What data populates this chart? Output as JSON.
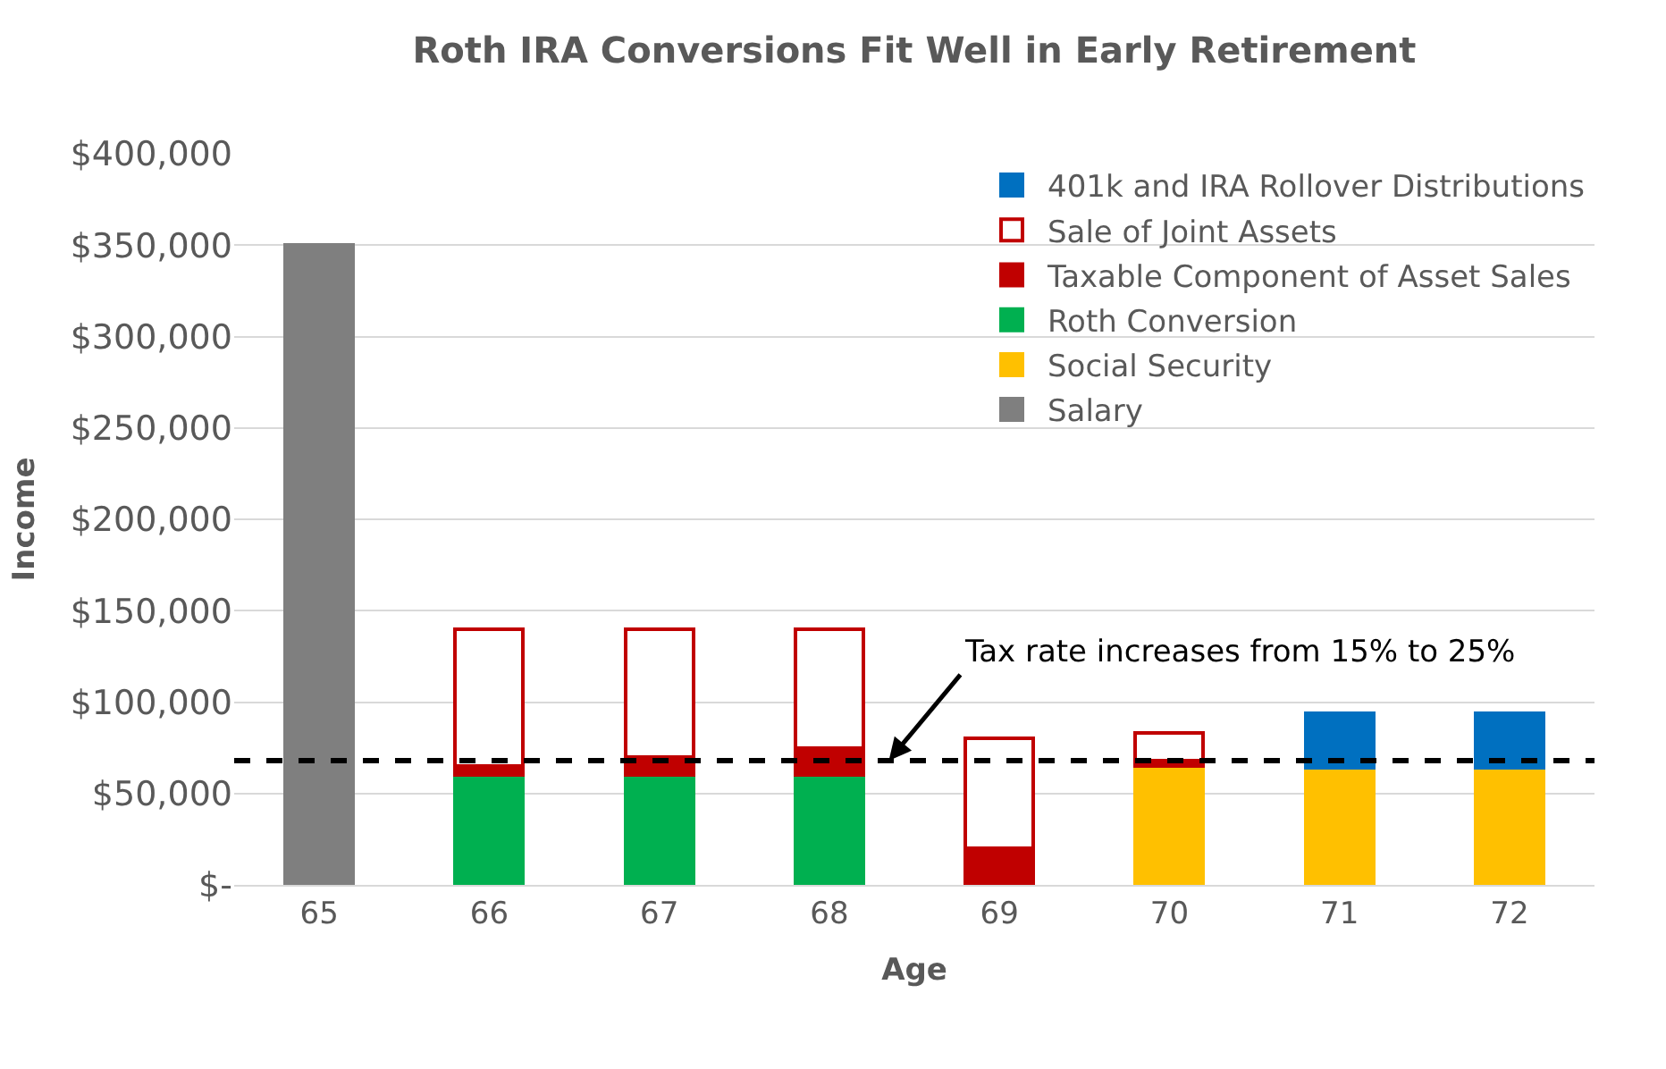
{
  "chart_data": {
    "type": "bar",
    "title": "Roth IRA Conversions Fit Well in Early Retirement",
    "xlabel": "Age",
    "ylabel": "Income",
    "categories": [
      "65",
      "66",
      "67",
      "68",
      "69",
      "70",
      "71",
      "72"
    ],
    "stacked": true,
    "series": [
      {
        "name": "Salary",
        "color": "#7f7f7f",
        "values": [
          350000,
          null,
          null,
          null,
          null,
          null,
          null,
          null
        ]
      },
      {
        "name": "Social Security",
        "color": "#ffc000",
        "values": [
          null,
          null,
          null,
          null,
          null,
          65000,
          64000,
          64000
        ]
      },
      {
        "name": "Roth Conversion",
        "color": "#00b050",
        "values": [
          null,
          60000,
          60000,
          60000,
          null,
          null,
          null,
          null
        ]
      },
      {
        "name": "Taxable Component of Asset Sales",
        "color": "#c00000",
        "values": [
          null,
          5000,
          10000,
          15000,
          20000,
          3000,
          null,
          null
        ]
      },
      {
        "name": "Sale of Joint Assets",
        "color": "#ffffff",
        "values": [
          null,
          75000,
          70000,
          65000,
          60000,
          15000,
          null,
          null
        ]
      },
      {
        "name": "401k and IRA Rollover Distributions",
        "color": "#0070c0",
        "values": [
          null,
          null,
          null,
          null,
          null,
          null,
          30000,
          30000
        ]
      }
    ],
    "ylim": [
      0,
      400000
    ],
    "yticks": [
      {
        "value": 0,
        "label": "$-"
      },
      {
        "value": 50000,
        "label": "$50,000"
      },
      {
        "value": 100000,
        "label": "$100,000"
      },
      {
        "value": 150000,
        "label": "$150,000"
      },
      {
        "value": 200000,
        "label": "$200,000"
      },
      {
        "value": 250000,
        "label": "$250,000"
      },
      {
        "value": 300000,
        "label": "$300,000"
      },
      {
        "value": 350000,
        "label": "$350,000"
      },
      {
        "value": 400000,
        "label": "$400,000"
      }
    ],
    "grid": "y",
    "legend": "top right",
    "ref_lines": [
      {
        "axis": "y",
        "value": 68000,
        "label": "Tax rate increases from 15% to 25%",
        "color": "#000000",
        "line_style": "dashed"
      }
    ]
  }
}
